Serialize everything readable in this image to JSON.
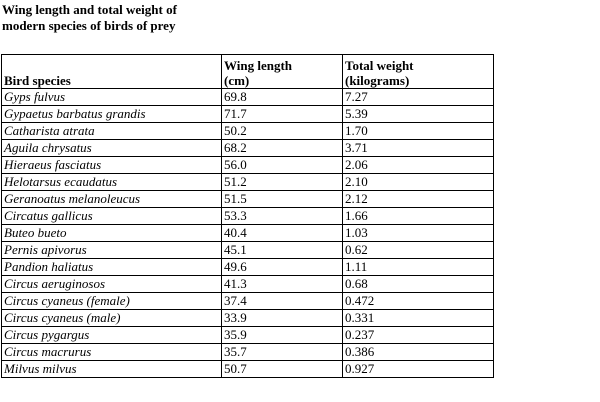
{
  "title": {
    "line1": "Wing length and total weight of",
    "line2": "modern species of birds of prey"
  },
  "headers": {
    "species": "Bird species",
    "wing_line1": "Wing length",
    "wing_line2": "(cm)",
    "weight_line1": "Total weight",
    "weight_line2": "(kilograms)"
  },
  "rows": [
    {
      "species": "Gyps fulvus",
      "wing": "69.8",
      "weight": "7.27"
    },
    {
      "species": "Gypaetus barbatus grandis",
      "wing": "71.7",
      "weight": "5.39"
    },
    {
      "species": "Catharista atrata",
      "wing": "50.2",
      "weight": "1.70"
    },
    {
      "species": "Aguila chrysatus",
      "wing": "68.2",
      "weight": "3.71"
    },
    {
      "species": "Hieraeus fasciatus",
      "wing": "56.0",
      "weight": "2.06"
    },
    {
      "species": "Helotarsus ecaudatus",
      "wing": "51.2",
      "weight": "2.10"
    },
    {
      "species": "Geranoatus melanoleucus",
      "wing": "51.5",
      "weight": "2.12"
    },
    {
      "species": "Circatus gallicus",
      "wing": "53.3",
      "weight": "1.66"
    },
    {
      "species": "Buteo bueto",
      "wing": "40.4",
      "weight": "1.03"
    },
    {
      "species": "Pernis apivorus",
      "wing": "45.1",
      "weight": "0.62"
    },
    {
      "species": "Pandion haliatus",
      "wing": "49.6",
      "weight": "1.11"
    },
    {
      "species": "Circus aeruginosos",
      "wing": "41.3",
      "weight": "0.68"
    },
    {
      "species": "Circus cyaneus (female)",
      "wing": "37.4",
      "weight": "0.472"
    },
    {
      "species": "Circus cyaneus (male)",
      "wing": "33.9",
      "weight": "0.331"
    },
    {
      "species": "Circus pygargus",
      "wing": "35.9",
      "weight": "0.237"
    },
    {
      "species": "Circus macrurus",
      "wing": "35.7",
      "weight": "0.386"
    },
    {
      "species": "Milvus milvus",
      "wing": "50.7",
      "weight": "0.927"
    }
  ]
}
